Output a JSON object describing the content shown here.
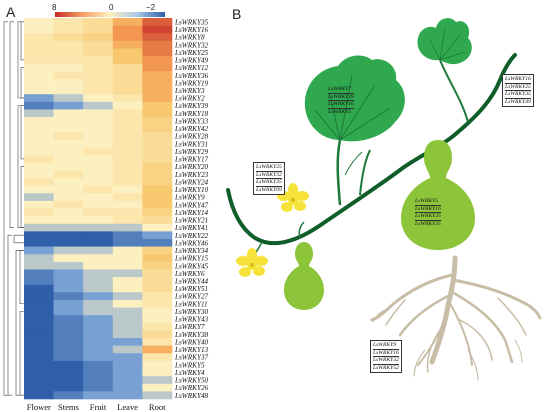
{
  "panels": {
    "a": "A",
    "b": "B"
  },
  "colorbar": {
    "min": "8",
    "mid": "0",
    "max": "−2"
  },
  "chart_data": {
    "type": "heatmap",
    "columns": [
      "Flower",
      "Stems",
      "Fruit",
      "Leave",
      "Root"
    ],
    "rows": [
      "LsWRKY35",
      "LsWRKY16",
      "LsWRKY8",
      "LsWRKY32",
      "LsWRKY25",
      "LsWRKY49",
      "LsWRKY12",
      "LsWRKY36",
      "LsWRKY19",
      "LsWRKY3",
      "LsWRKY2",
      "LsWRKY39",
      "LsWRKY18",
      "LsWRKY33",
      "LsWRKY42",
      "LsWRKY28",
      "LsWRKY31",
      "LsWRKY29",
      "LsWRKY17",
      "LsWRKY20",
      "LsWRKY23",
      "LsWRKY24",
      "LsWRKY10",
      "LsWRKY9",
      "LsWRKY47",
      "LsWRKY14",
      "LsWRKY21",
      "LsWRKY41",
      "LsWRKY22",
      "LsWRKY46",
      "LsWRKY34",
      "LsWRKY15",
      "LsWRKY45",
      "LsWRKY6",
      "LsWRKY44",
      "LsWRKY51",
      "LsWRKY27",
      "LsWRKY11",
      "LsWRKY30",
      "LsWRKY43",
      "LsWRKY7",
      "LsWRKY38",
      "LsWRKY40",
      "LsWRKY13",
      "LsWRKY37",
      "LsWRKY5",
      "LsWRKY4",
      "LsWRKY50",
      "LsWRKY26",
      "LsWRKY48"
    ],
    "scale": [
      -2,
      8
    ],
    "values": [
      [
        0,
        0.5,
        1,
        3,
        6
      ],
      [
        0,
        0.5,
        1,
        4,
        7
      ],
      [
        0.5,
        1,
        1.5,
        4,
        6
      ],
      [
        0.5,
        0.5,
        1,
        3,
        5
      ],
      [
        0.5,
        0.5,
        1,
        2,
        5
      ],
      [
        0.5,
        0.5,
        0.5,
        2,
        4
      ],
      [
        0,
        0,
        0.5,
        1,
        4
      ],
      [
        0,
        0.5,
        0.5,
        1,
        3
      ],
      [
        0,
        0,
        0.5,
        1,
        3
      ],
      [
        0,
        0,
        0.5,
        1,
        3
      ],
      [
        -1,
        -0.5,
        0,
        0.5,
        3
      ],
      [
        -1.5,
        -1,
        -0.5,
        0,
        2
      ],
      [
        -0.5,
        0,
        0,
        0.5,
        2
      ],
      [
        0,
        0,
        0,
        0.5,
        1.5
      ],
      [
        0,
        0,
        0,
        0.5,
        1.5
      ],
      [
        0,
        0.5,
        0,
        0.5,
        1
      ],
      [
        0,
        0,
        0,
        0.5,
        1
      ],
      [
        0,
        0,
        0.5,
        0.5,
        1
      ],
      [
        0.5,
        0,
        0,
        0.5,
        1
      ],
      [
        0,
        0,
        0,
        0.5,
        1.5
      ],
      [
        0,
        0.5,
        0,
        0.5,
        1.5
      ],
      [
        0.5,
        0,
        0,
        0.5,
        1.5
      ],
      [
        0,
        0,
        0.5,
        0,
        2
      ],
      [
        -0.5,
        0,
        0,
        0.5,
        2
      ],
      [
        0,
        0.5,
        0,
        0,
        2
      ],
      [
        0.5,
        0,
        0.5,
        0.5,
        1.5
      ],
      [
        0,
        0,
        0,
        0.5,
        1
      ],
      [
        -0.5,
        -0.5,
        -0.5,
        -0.5,
        0
      ],
      [
        -2,
        -2,
        -2,
        -1.5,
        -1
      ],
      [
        -2,
        -2,
        -2,
        -1.5,
        -1.5
      ],
      [
        -1,
        -0.5,
        -0.5,
        0,
        1.5
      ],
      [
        -0.5,
        0,
        0,
        0,
        2
      ],
      [
        -0.5,
        -0.5,
        0,
        0,
        1.5
      ],
      [
        -1.5,
        -1,
        -0.5,
        -0.5,
        1
      ],
      [
        -1.5,
        -1,
        -0.5,
        0,
        1
      ],
      [
        -2,
        -1,
        -0.5,
        0,
        1
      ],
      [
        -2,
        -1.5,
        -1,
        -0.5,
        0.5
      ],
      [
        -2,
        -1,
        -0.5,
        0,
        0.5
      ],
      [
        -2,
        -1,
        -0.5,
        -0.5,
        0
      ],
      [
        -2,
        -1.5,
        -1,
        -0.5,
        0
      ],
      [
        -2,
        -1.5,
        -1,
        -0.5,
        0.5
      ],
      [
        -2,
        -1.5,
        -1,
        -0.5,
        1
      ],
      [
        -2,
        -1.5,
        -1,
        -1,
        0.5
      ],
      [
        -2,
        -1.5,
        -1,
        -0.5,
        3
      ],
      [
        -2,
        -1.5,
        -1,
        -1,
        0.5
      ],
      [
        -2,
        -2,
        -1.5,
        -1,
        0
      ],
      [
        -2,
        -2,
        -1.5,
        -1,
        0
      ],
      [
        -2,
        -2,
        -1.5,
        -1,
        -0.5
      ],
      [
        -2,
        -2,
        -1.5,
        -1,
        0
      ],
      [
        -2,
        -1.5,
        -1,
        -1,
        -0.5
      ]
    ]
  },
  "labels": {
    "upper_leaf": [
      "LsWRKY7",
      "LsWRKY39",
      "LsWRKY16",
      "LsWRKY5"
    ],
    "top_right": [
      "LsWRKY16",
      "LsWRKY25",
      "LsWRKY35",
      "LsWRKY49"
    ],
    "left_stem": [
      "LsWRKY25",
      "LsWRKY32",
      "LsWRKY35",
      "LsWRKY09"
    ],
    "fruit": [
      "LsWRKY5",
      "LsWRKY16",
      "LsWRKY25",
      "LsWRKY35"
    ],
    "root": [
      "LsWRKY9",
      "LsWRKY16",
      "LsWRKY32",
      "LsWRKY52"
    ]
  },
  "colors": {
    "leaf": "#2fa84f",
    "leaf_dark": "#1e7a3a",
    "vine": "#0f5e2a",
    "fruit": "#8cc43a",
    "flower": "#f6e33a",
    "root": "#c9bda7"
  }
}
